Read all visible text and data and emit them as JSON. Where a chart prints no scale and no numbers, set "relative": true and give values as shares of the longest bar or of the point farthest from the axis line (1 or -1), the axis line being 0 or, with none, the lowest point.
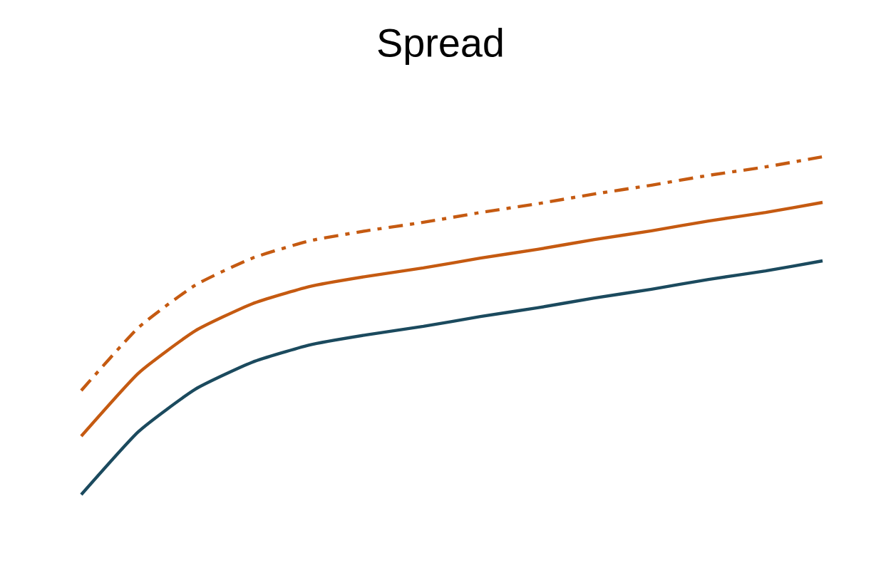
{
  "chart_data": {
    "type": "line",
    "title": "Spread",
    "relative": true,
    "categories": [
      null,
      null,
      null,
      null,
      null,
      null,
      null,
      null,
      null,
      null,
      null,
      null,
      null,
      null
    ],
    "series": [
      {
        "color": "#1b4a5e",
        "line_style": "solid",
        "values": [
          0,
          0.186,
          0.312,
          0.392,
          0.443,
          0.473,
          0.498,
          0.527,
          0.553,
          0.582,
          0.608,
          0.637,
          0.662,
          0.692
        ]
      },
      {
        "color": "#c55a11",
        "line_style": "solid",
        "values": [
          0.173,
          0.359,
          0.485,
          0.565,
          0.616,
          0.646,
          0.671,
          0.7,
          0.726,
          0.755,
          0.781,
          0.81,
          0.835,
          0.865
        ]
      },
      {
        "color": "#c55a11",
        "line_style": "dashed",
        "values": [
          0.308,
          0.494,
          0.62,
          0.7,
          0.751,
          0.781,
          0.806,
          0.835,
          0.861,
          0.89,
          0.916,
          0.945,
          0.97,
          1
        ]
      }
    ]
  }
}
